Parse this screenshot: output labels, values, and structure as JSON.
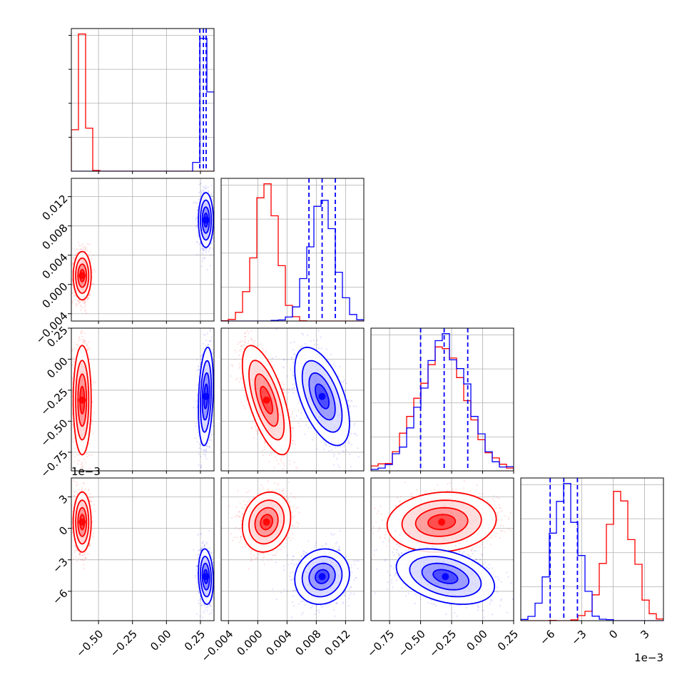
{
  "chart_data": {
    "type": "corner",
    "colors": {
      "red": "#ff0000",
      "blue": "#0000ff",
      "grid": "#b0b0b0"
    },
    "parameters": [
      {
        "range": [
          -0.7,
          0.35
        ],
        "ticks": [
          -0.5,
          -0.25,
          0.0,
          0.25
        ],
        "tick_labels": [
          "−0.50",
          "−0.25",
          "0.00",
          "0.25"
        ]
      },
      {
        "range": [
          -0.005,
          0.0145
        ],
        "ticks": [
          -0.004,
          0.0,
          0.004,
          0.008,
          0.012
        ],
        "tick_labels": [
          "−0.004",
          "0.000",
          "0.004",
          "0.008",
          "0.012"
        ]
      },
      {
        "range": [
          -0.9,
          0.25
        ],
        "ticks": [
          -0.75,
          -0.5,
          -0.25,
          0.0,
          0.25
        ],
        "tick_labels": [
          "−0.75",
          "−0.50",
          "−0.25",
          "0.00",
          "0.25"
        ]
      },
      {
        "range": [
          -0.0088,
          0.0048
        ],
        "ticks": [
          -0.006,
          -0.003,
          0.0,
          0.003
        ],
        "tick_labels": [
          "−6",
          "−3",
          "0",
          "3"
        ],
        "offset_label": "1e−3"
      }
    ],
    "series": [
      {
        "color": "red",
        "means": [
          -0.62,
          0.0012,
          -0.33,
          0.0006
        ],
        "sds": [
          0.03,
          0.0015,
          0.2,
          0.0013
        ],
        "corrs": [
          [
            1,
            0,
            0,
            0
          ],
          [
            0,
            1,
            -0.65,
            0.15
          ],
          [
            0,
            -0.65,
            1,
            0.1
          ],
          [
            0,
            0.15,
            0.1,
            1
          ]
        ]
      },
      {
        "color": "blue",
        "means": [
          0.29,
          0.0088,
          -0.3,
          -0.0046
        ],
        "sds": [
          0.025,
          0.0017,
          0.18,
          0.0012
        ],
        "corrs": [
          [
            1,
            0,
            0.25,
            -0.15
          ],
          [
            0,
            1,
            -0.55,
            0.1
          ],
          [
            0.25,
            -0.55,
            1,
            -0.35
          ],
          [
            -0.15,
            0.1,
            -0.35,
            1
          ]
        ]
      }
    ],
    "quantile_lines": [
      [
        0.245,
        0.272,
        0.292
      ],
      [
        0.007,
        0.0088,
        0.0106
      ],
      [
        -0.5,
        -0.31,
        -0.12
      ],
      [
        -0.006,
        -0.0047,
        -0.0034
      ]
    ]
  }
}
